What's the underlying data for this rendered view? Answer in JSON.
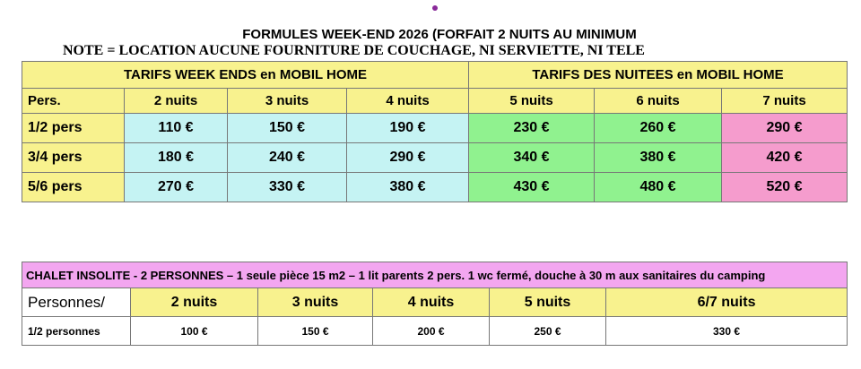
{
  "title": "FORMULES WEEK-END 2026 (FORFAIT 2 NUITS AU MINIMUM",
  "note": "NOTE = LOCATION AUCUNE FOURNITURE DE COUCHAGE, NI SERVIETTE, NI TELE",
  "mobil_home": {
    "group_weekend": "TARIFS WEEK ENDS en MOBIL HOME",
    "group_nuitees": "TARIFS DES NUITEES en MOBIL HOME",
    "headers": [
      "Pers.",
      "2 nuits",
      "3 nuits",
      "4 nuits",
      "5 nuits",
      "6 nuits",
      "7 nuits"
    ],
    "rows": [
      [
        "1/2 pers",
        "110 €",
        "150 €",
        "190 €",
        "230 €",
        "260 €",
        "290 €"
      ],
      [
        "3/4 pers",
        "180 €",
        "240 €",
        "290 €",
        "340 €",
        "380 €",
        "420 €"
      ],
      [
        "5/6 pers",
        "270 €",
        "330 €",
        "380 €",
        "430 €",
        "480 €",
        "520 €"
      ]
    ]
  },
  "chalet": {
    "title": "CHALET INSOLITE - 2 PERSONNES – 1 seule pièce 15 m2 – 1 lit parents 2 pers. 1 wc fermé, douche à 30 m aux sanitaires du camping",
    "headers": [
      "Personnes/",
      "2 nuits",
      "3 nuits",
      "4 nuits",
      "5 nuits",
      "6/7 nuits"
    ],
    "row": [
      "1/2 personnes",
      "100 €",
      "150 €",
      "200 €",
      "250 €",
      "330 €"
    ]
  },
  "colors": {
    "yellow": "#f8f28e",
    "cyan": "#c5f3f3",
    "green": "#90f28f",
    "pink": "#f59ccd",
    "violet": "#f3a6f0"
  }
}
